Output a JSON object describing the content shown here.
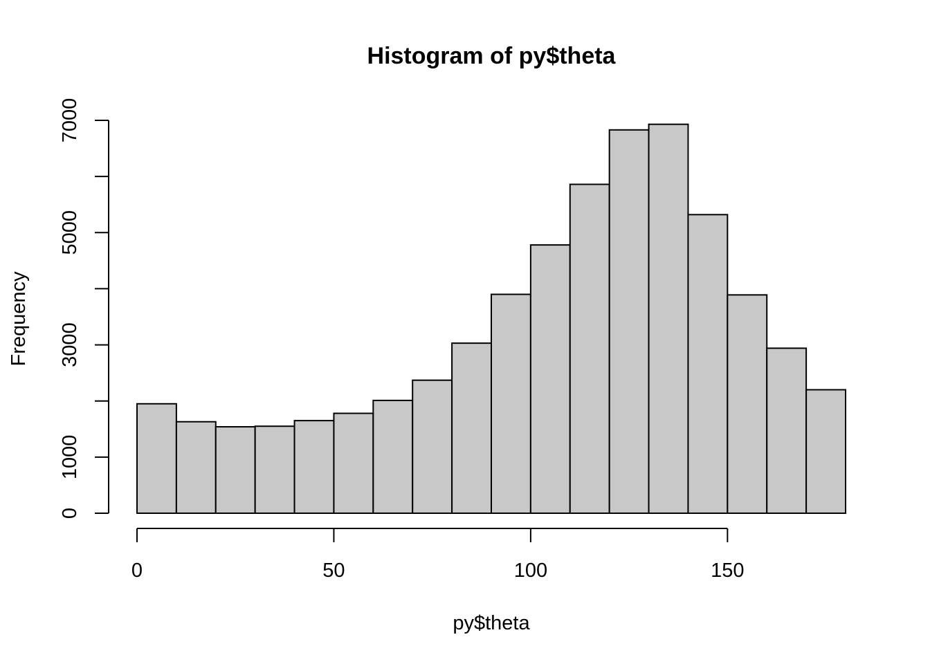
{
  "chart_data": {
    "type": "bar",
    "title": "Histogram of py$theta",
    "xlabel": "py$theta",
    "ylabel": "Frequency",
    "bin_width": 10,
    "bins": [
      {
        "x0": 0,
        "x1": 10,
        "count": 1950
      },
      {
        "x0": 10,
        "x1": 20,
        "count": 1630
      },
      {
        "x0": 20,
        "x1": 30,
        "count": 1540
      },
      {
        "x0": 30,
        "x1": 40,
        "count": 1550
      },
      {
        "x0": 40,
        "x1": 50,
        "count": 1650
      },
      {
        "x0": 50,
        "x1": 60,
        "count": 1780
      },
      {
        "x0": 60,
        "x1": 70,
        "count": 2010
      },
      {
        "x0": 70,
        "x1": 80,
        "count": 2370
      },
      {
        "x0": 80,
        "x1": 90,
        "count": 3030
      },
      {
        "x0": 90,
        "x1": 100,
        "count": 3900
      },
      {
        "x0": 100,
        "x1": 110,
        "count": 4780
      },
      {
        "x0": 110,
        "x1": 120,
        "count": 5860
      },
      {
        "x0": 120,
        "x1": 130,
        "count": 6830
      },
      {
        "x0": 130,
        "x1": 140,
        "count": 6930
      },
      {
        "x0": 140,
        "x1": 150,
        "count": 5320
      },
      {
        "x0": 150,
        "x1": 160,
        "count": 3890
      },
      {
        "x0": 160,
        "x1": 170,
        "count": 2940
      },
      {
        "x0": 170,
        "x1": 180,
        "count": 2200
      }
    ],
    "xlim": [
      0,
      180
    ],
    "ylim": [
      0,
      7000
    ],
    "x_ticks": [
      0,
      50,
      100,
      150
    ],
    "x_tick_labels": [
      "0",
      "50",
      "100",
      "150"
    ],
    "y_ticks": [
      0,
      1000,
      2000,
      3000,
      4000,
      5000,
      6000,
      7000
    ],
    "y_tick_labels": [
      "0",
      "1000",
      "",
      "3000",
      "",
      "5000",
      "",
      "7000"
    ],
    "grid": false,
    "legend": "none",
    "colors": {
      "bar_fill": "#c8c8c8",
      "bar_stroke": "#000000"
    }
  }
}
